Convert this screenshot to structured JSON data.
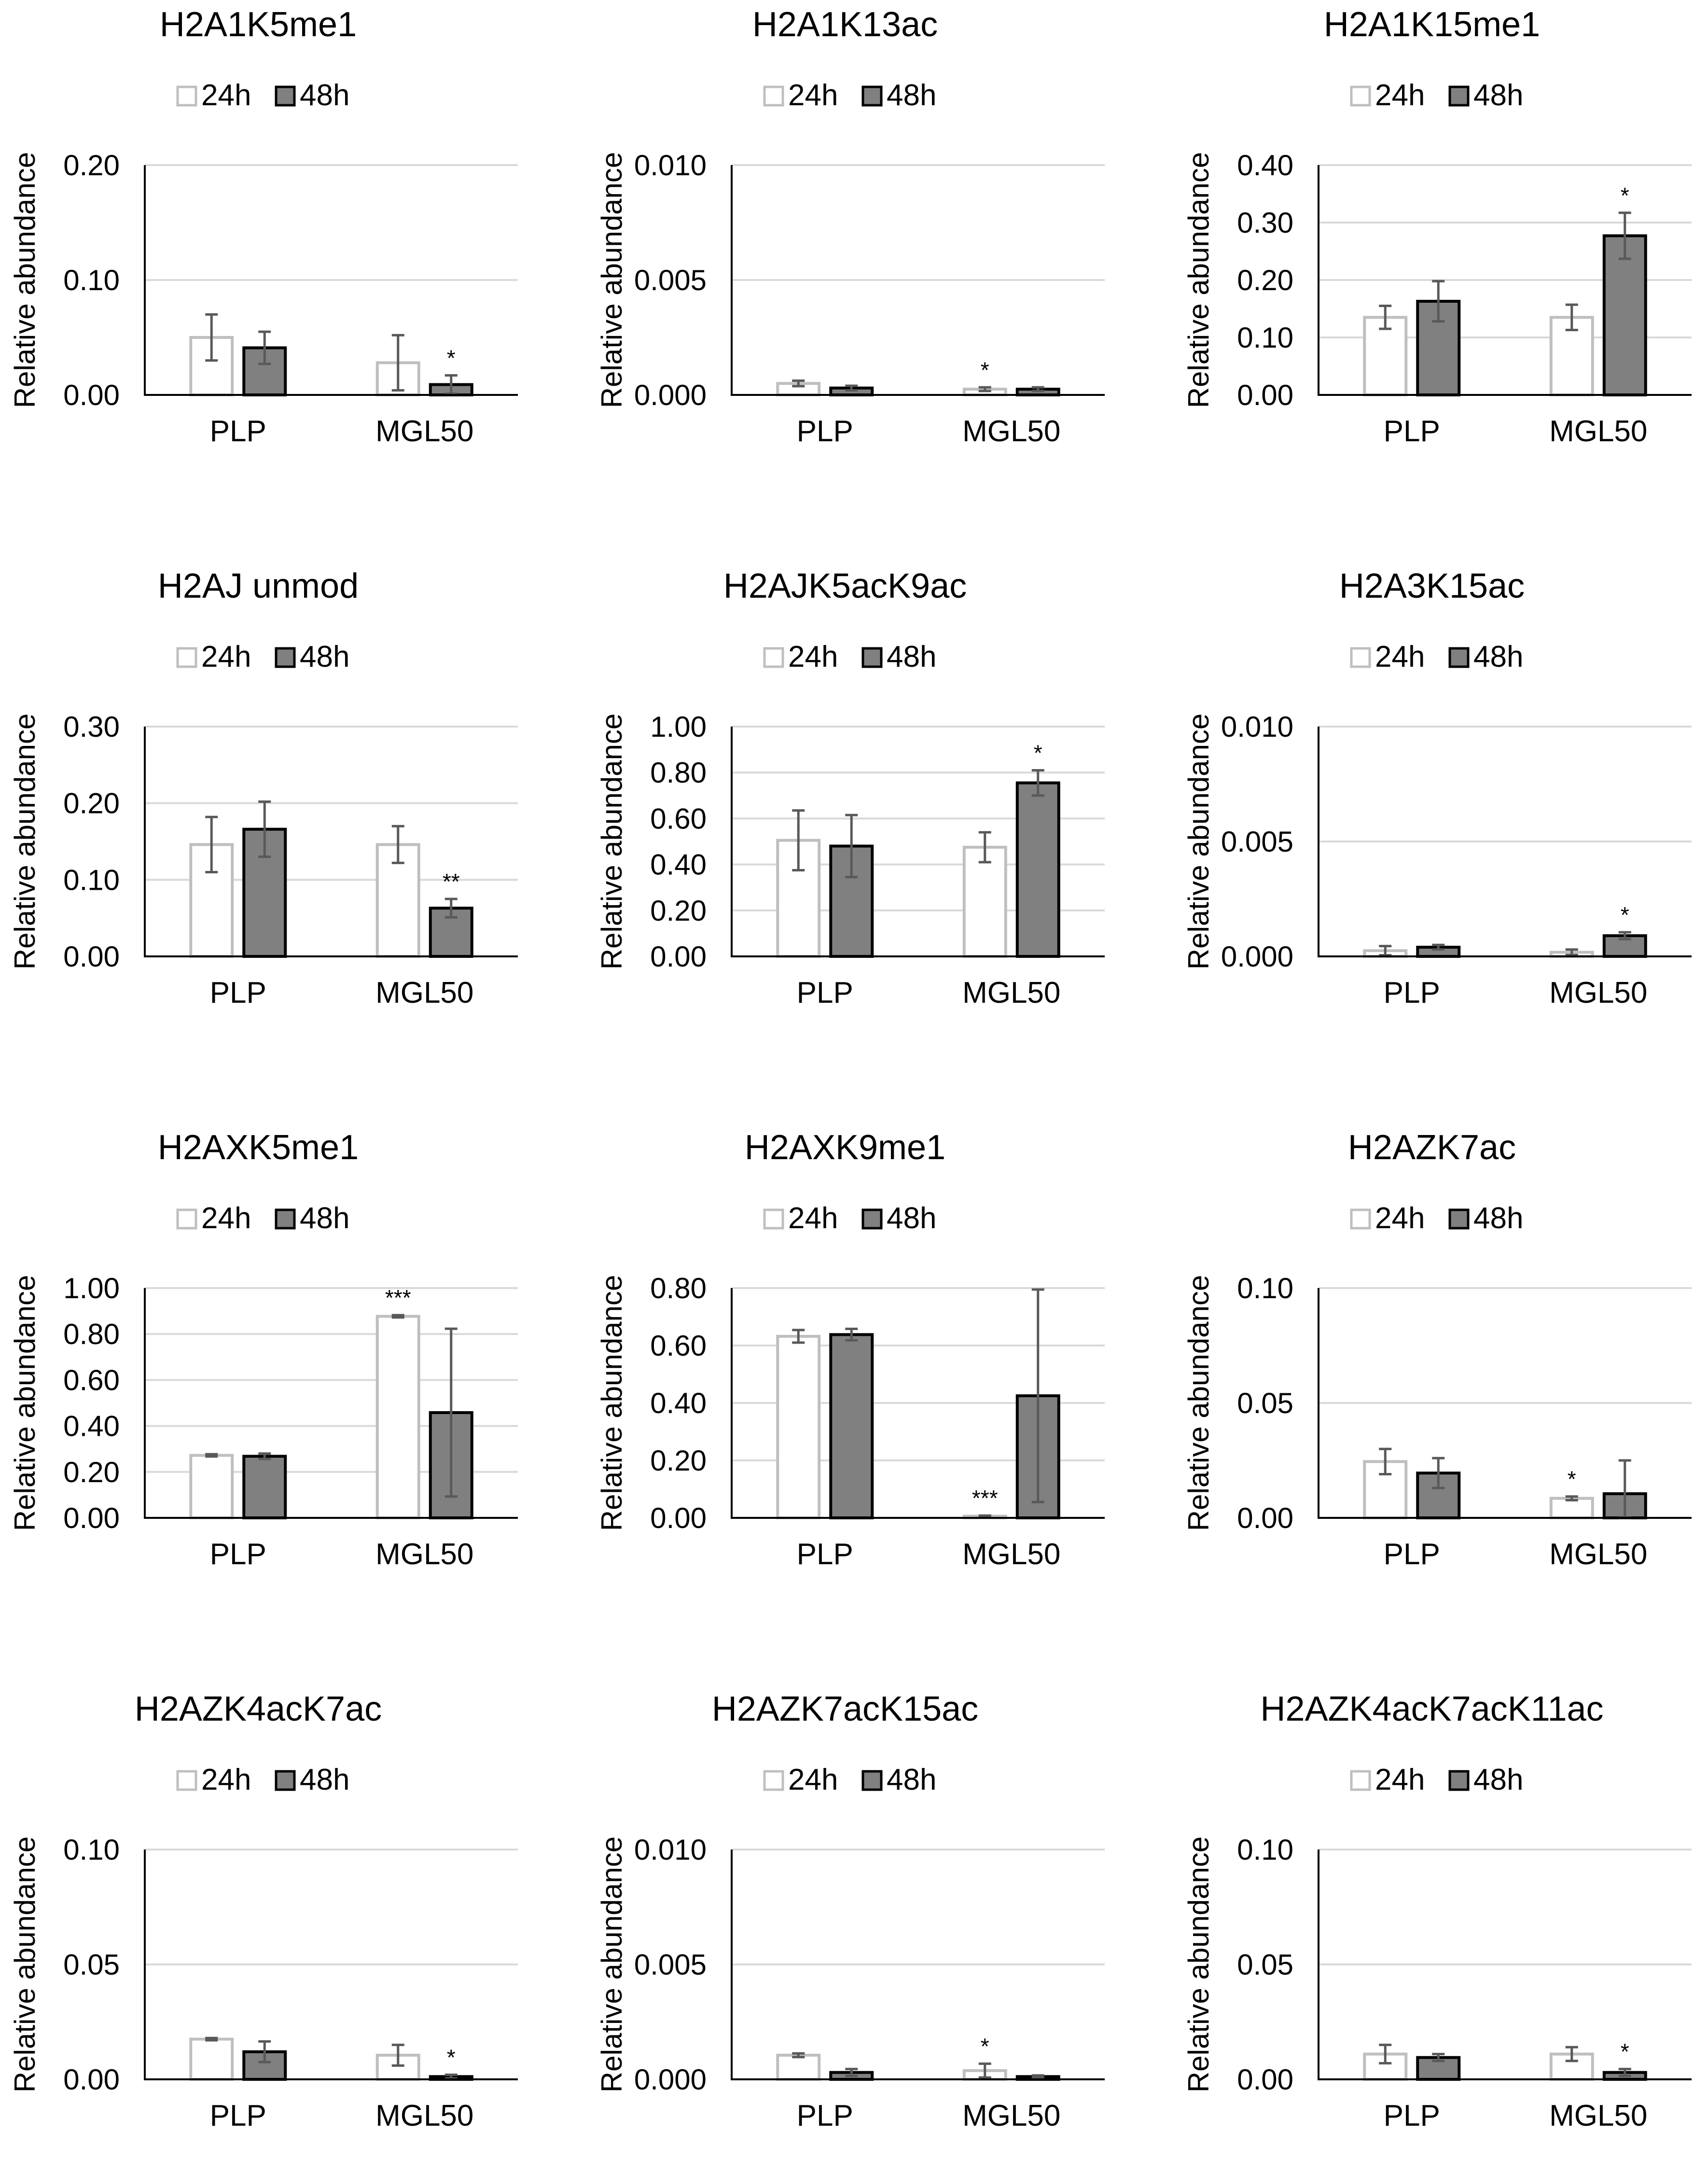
{
  "figure": {
    "series_names": [
      "24h",
      "48h"
    ],
    "y_axis_label": "Relative abundance",
    "colors": {
      "series_24h_fill": "#ffffff",
      "series_24h_stroke": "#bfbfbf",
      "series_48h_fill": "#808080",
      "series_48h_stroke": "#000000",
      "gridline": "#d9d9d9",
      "axis": "#000000",
      "error_bar": "#595959",
      "text": "#000000"
    }
  },
  "chart_data": [
    {
      "type": "bar",
      "title": "H2A1K5me1",
      "categories": [
        "PLP",
        "MGL50"
      ],
      "ylabel": "Relative abundance",
      "ylim": [
        0,
        0.2
      ],
      "ticks": [
        "0.00",
        "0.10",
        "0.20"
      ],
      "series": [
        {
          "name": "24h",
          "values": [
            0.05,
            0.028
          ],
          "errors": [
            0.02,
            0.024
          ]
        },
        {
          "name": "48h",
          "values": [
            0.041,
            0.009
          ],
          "errors": [
            0.014,
            0.008
          ]
        }
      ],
      "annotations": [
        {
          "category": "MGL50",
          "series": "48h",
          "text": "*"
        }
      ]
    },
    {
      "type": "bar",
      "title": "H2A1K13ac",
      "categories": [
        "PLP",
        "MGL50"
      ],
      "ylabel": "Relative abundance",
      "ylim": [
        0,
        0.01
      ],
      "ticks": [
        "0.000",
        "0.005",
        "0.010"
      ],
      "series": [
        {
          "name": "24h",
          "values": [
            0.0005,
            0.00025
          ],
          "errors": [
            0.00012,
            8e-05
          ]
        },
        {
          "name": "48h",
          "values": [
            0.0003,
            0.00025
          ],
          "errors": [
            0.0001,
            8e-05
          ]
        }
      ],
      "annotations": [
        {
          "category": "MGL50",
          "series": "24h",
          "text": "*"
        }
      ]
    },
    {
      "type": "bar",
      "title": "H2A1K15me1",
      "categories": [
        "PLP",
        "MGL50"
      ],
      "ylabel": "Relative abundance",
      "ylim": [
        0,
        0.4
      ],
      "ticks": [
        "0.00",
        "0.10",
        "0.20",
        "0.30",
        "0.40"
      ],
      "series": [
        {
          "name": "24h",
          "values": [
            0.135,
            0.135
          ],
          "errors": [
            0.02,
            0.022
          ]
        },
        {
          "name": "48h",
          "values": [
            0.163,
            0.277
          ],
          "errors": [
            0.035,
            0.04
          ]
        }
      ],
      "annotations": [
        {
          "category": "MGL50",
          "series": "48h",
          "text": "*"
        }
      ]
    },
    {
      "type": "bar",
      "title": "H2AJ unmod",
      "categories": [
        "PLP",
        "MGL50"
      ],
      "ylabel": "Relative abundance",
      "ylim": [
        0,
        0.3
      ],
      "ticks": [
        "0.00",
        "0.10",
        "0.20",
        "0.30"
      ],
      "series": [
        {
          "name": "24h",
          "values": [
            0.146,
            0.146
          ],
          "errors": [
            0.036,
            0.024
          ]
        },
        {
          "name": "48h",
          "values": [
            0.166,
            0.063
          ],
          "errors": [
            0.036,
            0.012
          ]
        }
      ],
      "annotations": [
        {
          "category": "MGL50",
          "series": "48h",
          "text": "**"
        }
      ]
    },
    {
      "type": "bar",
      "title": "H2AJK5acK9ac",
      "categories": [
        "PLP",
        "MGL50"
      ],
      "ylabel": "Relative abundance",
      "ylim": [
        0,
        1.0
      ],
      "ticks": [
        "0.00",
        "0.20",
        "0.40",
        "0.60",
        "0.80",
        "1.00"
      ],
      "series": [
        {
          "name": "24h",
          "values": [
            0.505,
            0.475
          ],
          "errors": [
            0.13,
            0.065
          ]
        },
        {
          "name": "48h",
          "values": [
            0.48,
            0.755
          ],
          "errors": [
            0.135,
            0.055
          ]
        }
      ],
      "annotations": [
        {
          "category": "MGL50",
          "series": "48h",
          "text": "*"
        }
      ]
    },
    {
      "type": "bar",
      "title": "H2A3K15ac",
      "categories": [
        "PLP",
        "MGL50"
      ],
      "ylabel": "Relative abundance",
      "ylim": [
        0,
        0.01
      ],
      "ticks": [
        "0.000",
        "0.005",
        "0.010"
      ],
      "series": [
        {
          "name": "24h",
          "values": [
            0.00025,
            0.00018
          ],
          "errors": [
            0.0002,
            0.00012
          ]
        },
        {
          "name": "48h",
          "values": [
            0.0004,
            0.0009
          ],
          "errors": [
            0.0001,
            0.00015
          ]
        }
      ],
      "annotations": [
        {
          "category": "MGL50",
          "series": "48h",
          "text": "*"
        }
      ]
    },
    {
      "type": "bar",
      "title": "H2AXK5me1",
      "categories": [
        "PLP",
        "MGL50"
      ],
      "ylabel": "Relative abundance",
      "ylim": [
        0,
        1.0
      ],
      "ticks": [
        "0.00",
        "0.20",
        "0.40",
        "0.60",
        "0.80",
        "1.00"
      ],
      "series": [
        {
          "name": "24h",
          "values": [
            0.272,
            0.877
          ],
          "errors": [
            0.005,
            0.005
          ]
        },
        {
          "name": "48h",
          "values": [
            0.268,
            0.458
          ],
          "errors": [
            0.012,
            0.365
          ]
        }
      ],
      "annotations": [
        {
          "category": "MGL50",
          "series": "24h",
          "text": "***"
        }
      ]
    },
    {
      "type": "bar",
      "title": "H2AXK9me1",
      "categories": [
        "PLP",
        "MGL50"
      ],
      "ylabel": "Relative abundance",
      "ylim": [
        0,
        0.8
      ],
      "ticks": [
        "0.00",
        "0.20",
        "0.40",
        "0.60",
        "0.80"
      ],
      "series": [
        {
          "name": "24h",
          "values": [
            0.632,
            0.006
          ],
          "errors": [
            0.022,
            0.002
          ]
        },
        {
          "name": "48h",
          "values": [
            0.638,
            0.425
          ],
          "errors": [
            0.02,
            0.37
          ]
        }
      ],
      "annotations": [
        {
          "category": "MGL50",
          "series": "24h",
          "text": "***"
        }
      ]
    },
    {
      "type": "bar",
      "title": "H2AZK7ac",
      "categories": [
        "PLP",
        "MGL50"
      ],
      "ylabel": "Relative abundance",
      "ylim": [
        0,
        0.1
      ],
      "ticks": [
        "0.00",
        "0.05",
        "0.10"
      ],
      "series": [
        {
          "name": "24h",
          "values": [
            0.0245,
            0.0085
          ],
          "errors": [
            0.0055,
            0.0008
          ]
        },
        {
          "name": "48h",
          "values": [
            0.0195,
            0.0105
          ],
          "errors": [
            0.0065,
            0.0145
          ]
        }
      ],
      "annotations": [
        {
          "category": "MGL50",
          "series": "24h",
          "text": "*"
        }
      ]
    },
    {
      "type": "bar",
      "title": "H2AZK4acK7ac",
      "categories": [
        "PLP",
        "MGL50"
      ],
      "ylabel": "Relative abundance",
      "ylim": [
        0,
        0.1
      ],
      "ticks": [
        "0.00",
        "0.05",
        "0.10"
      ],
      "series": [
        {
          "name": "24h",
          "values": [
            0.0175,
            0.0105
          ],
          "errors": [
            0.0005,
            0.0045
          ]
        },
        {
          "name": "48h",
          "values": [
            0.012,
            0.0012
          ],
          "errors": [
            0.0045,
            0.0008
          ]
        }
      ],
      "annotations": [
        {
          "category": "MGL50",
          "series": "48h",
          "text": "*"
        }
      ]
    },
    {
      "type": "bar",
      "title": "H2AZK7acK15ac",
      "categories": [
        "PLP",
        "MGL50"
      ],
      "ylabel": "Relative abundance",
      "ylim": [
        0,
        0.01
      ],
      "ticks": [
        "0.000",
        "0.005",
        "0.010"
      ],
      "series": [
        {
          "name": "24h",
          "values": [
            0.00105,
            0.00038
          ],
          "errors": [
            8e-05,
            0.0003
          ]
        },
        {
          "name": "48h",
          "values": [
            0.0003,
            0.00012
          ],
          "errors": [
            0.00015,
            5e-05
          ]
        }
      ],
      "annotations": [
        {
          "category": "MGL50",
          "series": "24h",
          "text": "*"
        }
      ]
    },
    {
      "type": "bar",
      "title": "H2AZK4acK7acK11ac",
      "categories": [
        "PLP",
        "MGL50"
      ],
      "ylabel": "Relative abundance",
      "ylim": [
        0,
        0.1
      ],
      "ticks": [
        "0.00",
        "0.05",
        "0.10"
      ],
      "series": [
        {
          "name": "24h",
          "values": [
            0.011,
            0.011
          ],
          "errors": [
            0.004,
            0.003
          ]
        },
        {
          "name": "48h",
          "values": [
            0.0095,
            0.003
          ],
          "errors": [
            0.0015,
            0.0015
          ]
        }
      ],
      "annotations": [
        {
          "category": "MGL50",
          "series": "48h",
          "text": "*"
        }
      ]
    }
  ]
}
